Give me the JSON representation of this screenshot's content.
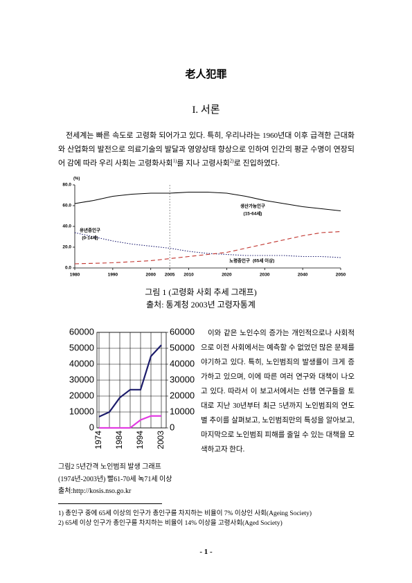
{
  "document": {
    "title": "老人犯罪",
    "section": "I. 서론",
    "intro": {
      "part1": "전세계는 빠른 속도로 고령화 되어가고 있다. 특히, 우리나라는 1960년대 이후 급격한 근대화와 산업화의 발전으로 의료기술의 발달과 영양상태 향상으로 인하여 인간의 평균 수명이 연장되어 감에 따라 우리 사회는 고령화사회",
      "ref1": "1)",
      "part2": "를 지나 고령사회",
      "ref2": "2)",
      "part3": "로 진입하였다."
    },
    "figure1_caption": "그림 1 (고령화 사회 추세 그래프)",
    "figure1_source": "출처: 통계청 2003년 고령자통계",
    "side_paragraph": "이와 같은 노인수의 증가는 개인적으로나 사회적으로 이전 사회에서는 예측할 수 없었던 많은 문제를 야기하고 있다. 특히, 노인범죄의 발생률이 크게 증가하고 있으며, 이에 따른 여러 연구와 대책이 나오고 있다. 따라서 이 보고서에서는 선행 연구들을 토대로 지난 30년부터 최근 5년까지 노인범죄의 연도별 추이를 살펴보고, 노인범죄만의 특성을 알아보고, 마지막으로 노인범죄 피해를 줄일 수 있는 대책을 모색하고자 한다.",
    "figure2_caption": [
      "그림2  5년간격 노인범죄 발생 그래프",
      "(1974년-2003년) 빨61-70세 녹71세 이상",
      "출처:http://kosis.nso.go.kr"
    ],
    "footnotes": [
      "1) 총인구 중에 65세 이상의 인구가 총인구를 차지하는 비율이 7% 이상인 사회(Ageing Society)",
      "2) 65세 이상 인구가 총인구를 차지하는 비율이 14% 이상을 고령사회(Aged Society)"
    ],
    "page_number": "- 1 -"
  },
  "chart_data": [
    {
      "type": "line",
      "y_label": "(%)",
      "x": [
        1980,
        1985,
        1990,
        1995,
        2000,
        2005,
        2010,
        2015,
        2020,
        2025,
        2030,
        2035,
        2040,
        2045,
        2050
      ],
      "xlim": [
        1980,
        2050
      ],
      "xticks": [
        1980,
        1990,
        2000,
        2005,
        2010,
        2020,
        2030,
        2040,
        2050
      ],
      "ylim": [
        0,
        80
      ],
      "yticks": [
        {
          "value": 0,
          "label": "0.0"
        },
        {
          "value": 20,
          "label": "20.0"
        },
        {
          "value": 40,
          "label": "40.0"
        },
        {
          "value": 60,
          "label": "60.0"
        },
        {
          "value": 80,
          "label": "80.0"
        }
      ],
      "vline": 2005,
      "series": [
        {
          "name": "생산가능인구",
          "note": "(15-64세)",
          "color": "#000000",
          "dash": "solid",
          "values": [
            62,
            65,
            69,
            71,
            72,
            72,
            73,
            73,
            72,
            69,
            65,
            62,
            59,
            57,
            55
          ]
        },
        {
          "name": "유년층인구",
          "note": "(0-14세)",
          "color": "#1a1a6e",
          "dash": "dotted",
          "values": [
            34,
            30,
            26,
            23,
            21,
            19,
            16,
            14,
            13,
            12,
            12,
            12,
            11,
            11,
            10
          ]
        },
        {
          "name": "노령층인구",
          "note": "(65세 이상)",
          "color": "#c0302a",
          "dash": "dashed",
          "values": [
            4,
            4.5,
            5,
            6,
            7,
            9,
            11,
            13,
            15,
            19,
            23,
            27,
            31,
            34,
            35
          ]
        }
      ]
    },
    {
      "type": "line",
      "categories": [
        "1974",
        null,
        "1984",
        null,
        "1994",
        null,
        "2003"
      ],
      "ylim": [
        0,
        60000
      ],
      "yticks": [
        0,
        10000,
        20000,
        30000,
        40000,
        50000,
        60000
      ],
      "y2lim": [
        0,
        60000
      ],
      "y2ticks": [
        0,
        10000,
        20000,
        30000,
        40000,
        50000,
        60000
      ],
      "grid": true,
      "series": [
        {
          "color": "#1c1c6b",
          "values": [
            7000,
            10000,
            19000,
            24000,
            24000,
            45000,
            52000
          ]
        },
        {
          "color": "#e23be2",
          "axis": "y2",
          "values": [
            0,
            0,
            0,
            0,
            5000,
            7500,
            7500
          ]
        }
      ]
    }
  ]
}
